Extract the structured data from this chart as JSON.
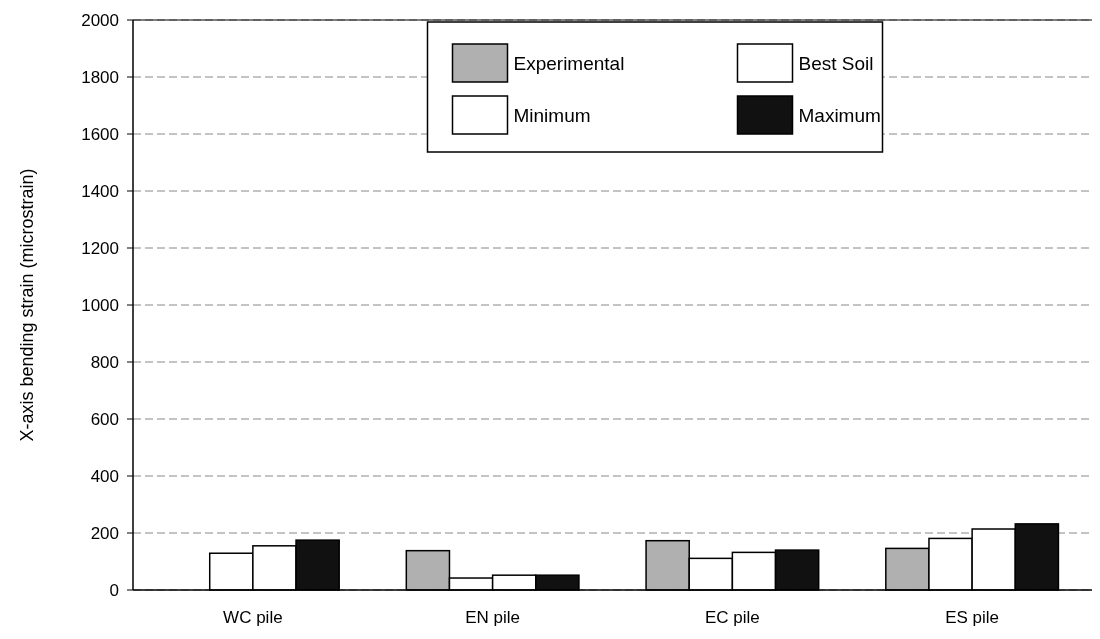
{
  "chart_data": {
    "type": "bar",
    "ylabel": "X-axis bending strain (microstrain)",
    "categories": [
      "WC pile",
      "EN pile",
      "EC pile",
      "ES pile"
    ],
    "series": [
      {
        "name": "Experimental",
        "color": "#b0b0b0",
        "values": [
          null,
          138,
          173,
          146
        ]
      },
      {
        "name": "Minimum",
        "color": "#ffffff",
        "values": [
          129,
          42,
          111,
          181
        ]
      },
      {
        "name": "Best Soil",
        "color": "#ffffff",
        "values": [
          155,
          52,
          132,
          214
        ]
      },
      {
        "name": "Maximum",
        "color": "#111111",
        "values": [
          175,
          52,
          140,
          232
        ]
      }
    ],
    "ylim": [
      0,
      2000
    ],
    "yticks": [
      0,
      200,
      400,
      600,
      800,
      1000,
      1200,
      1400,
      1600,
      1800,
      2000
    ],
    "grid": "y",
    "legend": "top"
  }
}
